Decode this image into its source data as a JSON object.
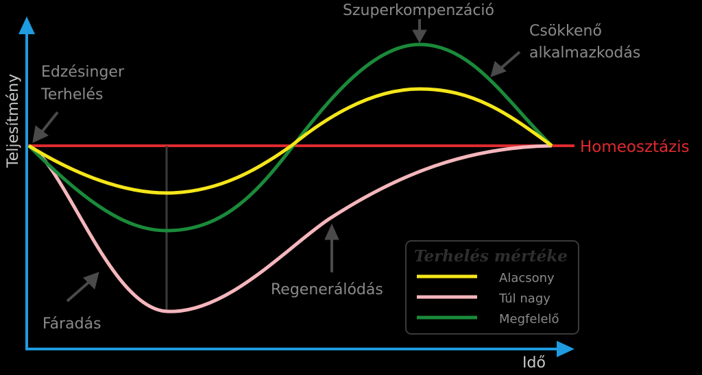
{
  "axes": {
    "y_label": "Teljesítmény",
    "x_label": "Idő",
    "color": "#1f9be0"
  },
  "homeostasis": {
    "label": "Homeosztázis",
    "color": "#e02a2f"
  },
  "annotations": {
    "stimulus_line1": "Edzésinger",
    "stimulus_line2": "Terhelés",
    "fatigue": "Fáradás",
    "regeneration": "Regenerálódás",
    "supercompensation": "Szuperkompenzáció",
    "decreasing_line1": "Csökkenő",
    "decreasing_line2": "alkalmazkodás"
  },
  "legend": {
    "title": "Terhelés mértéke",
    "items": [
      {
        "label": "Alacsony",
        "color": "#f5e61a"
      },
      {
        "label": "Túl nagy",
        "color": "#f4b6bc"
      },
      {
        "label": "Megfelelő",
        "color": "#1a8a3a"
      }
    ]
  },
  "arrow_color": "#4a4a4a"
}
